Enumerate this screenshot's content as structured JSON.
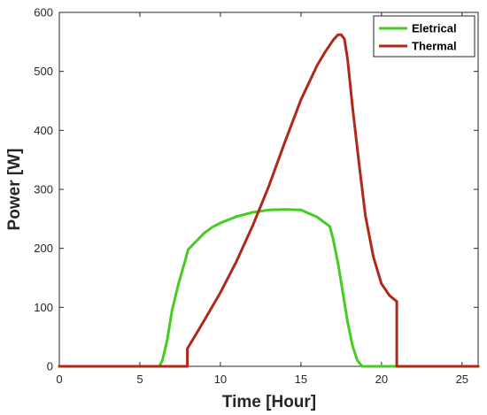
{
  "chart_data": {
    "type": "line",
    "xlabel": "Time [Hour]",
    "ylabel": "Power [W]",
    "xlim": [
      0,
      26
    ],
    "ylim": [
      0,
      600
    ],
    "xticks": [
      0,
      5,
      10,
      15,
      20,
      25
    ],
    "yticks": [
      0,
      100,
      200,
      300,
      400,
      500,
      600
    ],
    "grid": false,
    "legend_position": "top-right",
    "series": [
      {
        "name": "Eletrical",
        "color": "#44cc22",
        "x": [
          0,
          6.2,
          6.4,
          6.7,
          7.0,
          7.4,
          7.8,
          8.0,
          8.5,
          9.0,
          9.5,
          10,
          11,
          12,
          13,
          14,
          15,
          16,
          16.8,
          17.0,
          17.3,
          17.6,
          17.9,
          18.2,
          18.5,
          18.8,
          19.0,
          26
        ],
        "y": [
          0,
          0,
          10,
          45,
          95,
          140,
          178,
          198,
          212,
          226,
          236,
          243,
          254,
          261,
          265,
          266,
          265,
          253,
          237,
          215,
          175,
          125,
          75,
          35,
          10,
          0,
          0,
          0
        ]
      },
      {
        "name": "Thermal",
        "color": "#b0281a",
        "x": [
          0,
          7.95,
          7.95,
          8.5,
          9,
          10,
          11,
          12,
          13,
          14,
          15,
          16,
          16.5,
          17,
          17.3,
          17.5,
          17.7,
          17.9,
          18.2,
          18.6,
          19.0,
          19.5,
          20,
          20.5,
          20.95,
          20.95,
          26
        ],
        "y": [
          0,
          0,
          30,
          55,
          78,
          125,
          178,
          238,
          305,
          380,
          452,
          510,
          533,
          553,
          562,
          562,
          555,
          520,
          440,
          345,
          255,
          185,
          140,
          120,
          110,
          0,
          0
        ]
      }
    ]
  }
}
